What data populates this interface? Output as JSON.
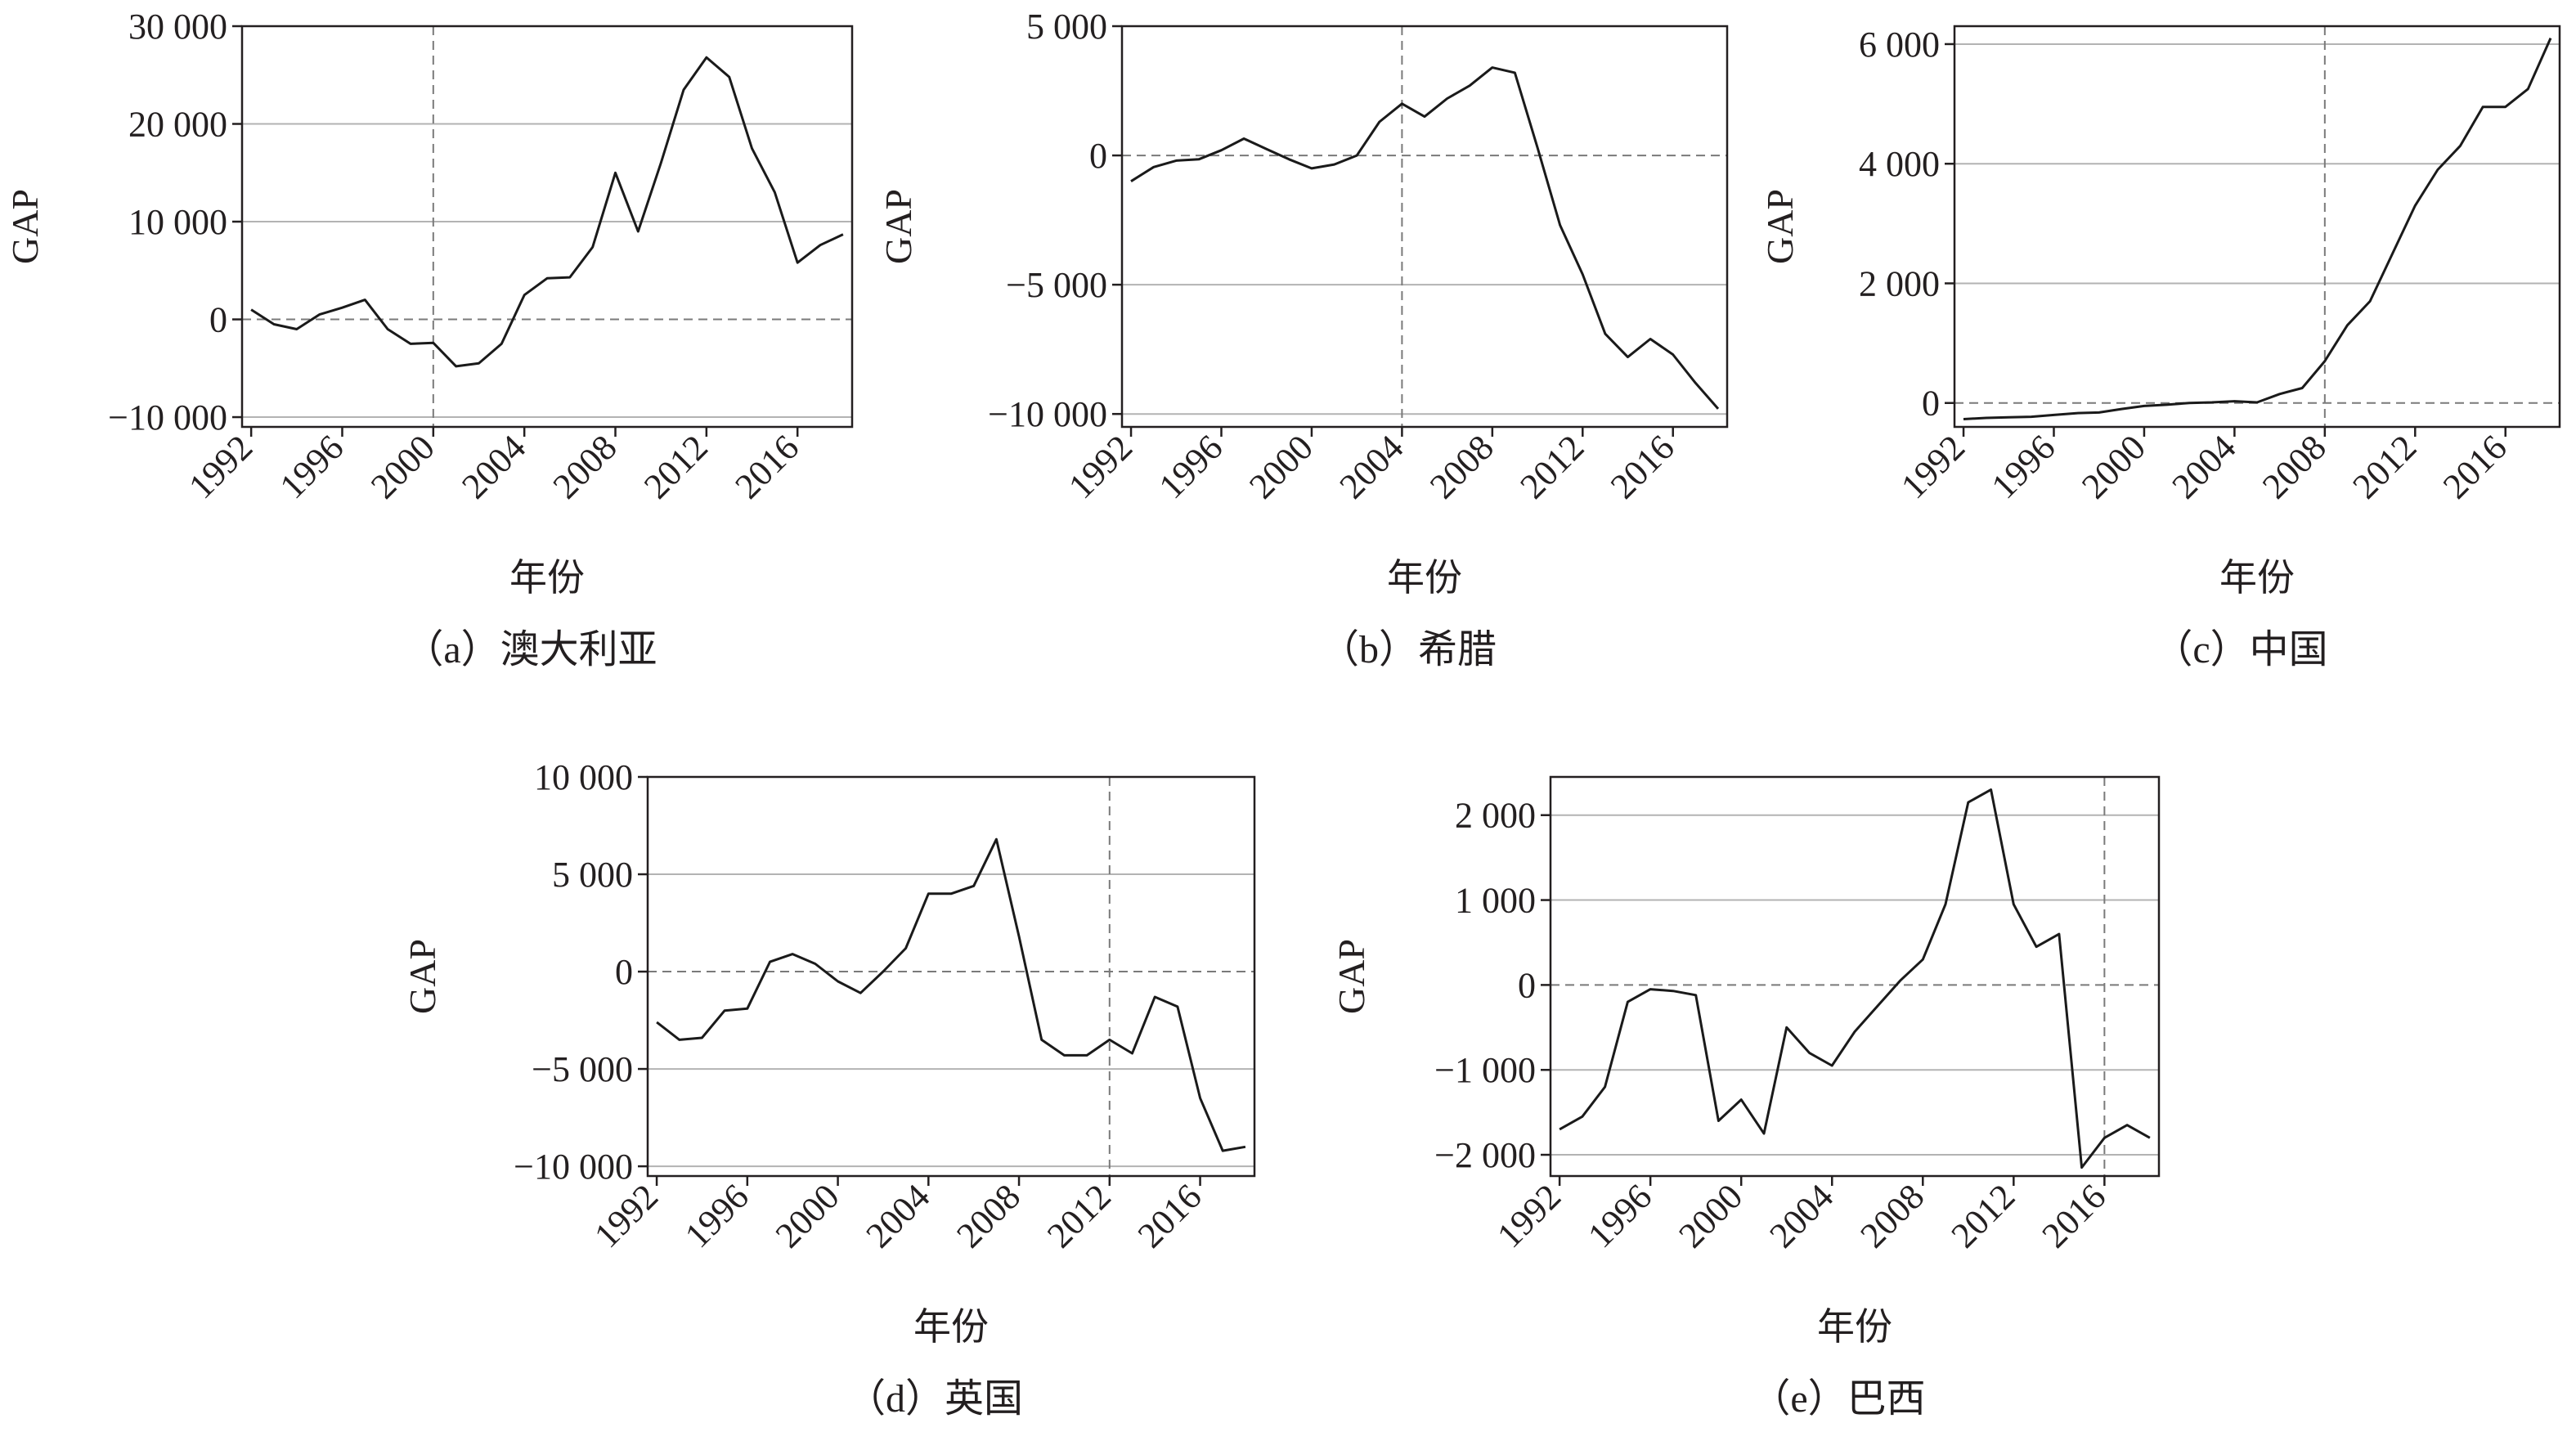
{
  "chart_data": [
    {
      "type": "line",
      "panel": "a",
      "caption": "（a）澳大利亚",
      "xlabel": "年份",
      "ylabel": "GAP",
      "xlim": [
        1991.6,
        2018.4
      ],
      "ylim": [
        -11000,
        30000
      ],
      "x_ticks": [
        1992,
        1996,
        2000,
        2004,
        2008,
        2012,
        2016
      ],
      "y_ticks": [
        -10000,
        0,
        10000,
        20000,
        30000
      ],
      "y_tick_labels": [
        "−10 000",
        "0",
        "10 000",
        "20 000",
        "30 000"
      ],
      "grid": "horizontal",
      "zero_line": "dashed",
      "treatment_year": 2000,
      "series": [
        {
          "x": [
            1992,
            1993,
            1994,
            1995,
            1996,
            1997,
            1998,
            1999,
            2000,
            2001,
            2002,
            2003,
            2004,
            2005,
            2006,
            2007,
            2008,
            2009,
            2010,
            2011,
            2012,
            2013,
            2014,
            2015,
            2016,
            2017,
            2018
          ],
          "values": [
            1000,
            -500,
            -1000,
            500,
            1200,
            2000,
            -1000,
            -2500,
            -2400,
            -4800,
            -4500,
            -2500,
            2500,
            4200,
            4300,
            7400,
            15000,
            9000,
            16000,
            23500,
            26800,
            24800,
            17500,
            13000,
            5800,
            7600,
            8700
          ]
        }
      ]
    },
    {
      "type": "line",
      "panel": "b",
      "caption": "（b）希腊",
      "xlabel": "年份",
      "ylabel": "GAP",
      "xlim": [
        1991.6,
        2018.4
      ],
      "ylim": [
        -10500,
        5000
      ],
      "x_ticks": [
        1992,
        1996,
        2000,
        2004,
        2008,
        2012,
        2016
      ],
      "y_ticks": [
        -10000,
        -5000,
        0,
        5000
      ],
      "y_tick_labels": [
        "−10 000",
        "−5 000",
        "0",
        "5 000"
      ],
      "grid": "horizontal",
      "zero_line": "dashed",
      "treatment_year": 2004,
      "series": [
        {
          "x": [
            1992,
            1993,
            1994,
            1995,
            1996,
            1997,
            1998,
            1999,
            2000,
            2001,
            2002,
            2003,
            2004,
            2005,
            2006,
            2007,
            2008,
            2009,
            2010,
            2011,
            2012,
            2013,
            2014,
            2015,
            2016,
            2017,
            2018
          ],
          "values": [
            -1000,
            -450,
            -200,
            -150,
            200,
            650,
            250,
            -150,
            -500,
            -350,
            0,
            1300,
            2000,
            1500,
            2200,
            2700,
            3400,
            3200,
            300,
            -2700,
            -4600,
            -6900,
            -7800,
            -7100,
            -7700,
            -8800,
            -9800
          ]
        }
      ]
    },
    {
      "type": "line",
      "panel": "c",
      "caption": "（c）中国",
      "xlabel": "年份",
      "ylabel": "GAP",
      "xlim": [
        1991.6,
        2018.4
      ],
      "ylim": [
        -400,
        6300
      ],
      "x_ticks": [
        1992,
        1996,
        2000,
        2004,
        2008,
        2012,
        2016
      ],
      "y_ticks": [
        0,
        2000,
        4000,
        6000
      ],
      "y_tick_labels": [
        "0",
        "2 000",
        "4 000",
        "6 000"
      ],
      "grid": "horizontal",
      "zero_line": "dashed",
      "treatment_year": 2008,
      "series": [
        {
          "x": [
            1992,
            1993,
            1994,
            1995,
            1996,
            1997,
            1998,
            1999,
            2000,
            2001,
            2002,
            2003,
            2004,
            2005,
            2006,
            2007,
            2008,
            2009,
            2010,
            2011,
            2012,
            2013,
            2014,
            2015,
            2016,
            2017,
            2018
          ],
          "values": [
            -270,
            -250,
            -240,
            -230,
            -200,
            -170,
            -160,
            -100,
            -50,
            -30,
            0,
            10,
            30,
            10,
            150,
            250,
            700,
            1300,
            1700,
            2500,
            3300,
            3900,
            4300,
            4950,
            4950,
            5250,
            6100
          ]
        }
      ]
    },
    {
      "type": "line",
      "panel": "d",
      "caption": "（d）英国",
      "xlabel": "年份",
      "ylabel": "GAP",
      "xlim": [
        1991.6,
        2018.4
      ],
      "ylim": [
        -10500,
        10000
      ],
      "x_ticks": [
        1992,
        1996,
        2000,
        2004,
        2008,
        2012,
        2016
      ],
      "y_ticks": [
        -10000,
        -5000,
        0,
        5000,
        10000
      ],
      "y_tick_labels": [
        "−10 000",
        "−5 000",
        "0",
        "5 000",
        "10 000"
      ],
      "grid": "horizontal",
      "zero_line": "dashed",
      "treatment_year": 2012,
      "series": [
        {
          "x": [
            1992,
            1993,
            1994,
            1995,
            1996,
            1997,
            1998,
            1999,
            2000,
            2001,
            2002,
            2003,
            2004,
            2005,
            2006,
            2007,
            2008,
            2009,
            2010,
            2011,
            2012,
            2013,
            2014,
            2015,
            2016,
            2017,
            2018
          ],
          "values": [
            -2600,
            -3500,
            -3400,
            -2000,
            -1900,
            500,
            900,
            400,
            -500,
            -1100,
            0,
            1200,
            4000,
            4000,
            4400,
            6800,
            1800,
            -3500,
            -4300,
            -4300,
            -3500,
            -4200,
            -1300,
            -1800,
            -6500,
            -9200,
            -9000
          ]
        }
      ]
    },
    {
      "type": "line",
      "panel": "e",
      "caption": "（e）巴西",
      "xlabel": "年份",
      "ylabel": "GAP",
      "xlim": [
        1991.6,
        2018.4
      ],
      "ylim": [
        -2250,
        2450
      ],
      "x_ticks": [
        1992,
        1996,
        2000,
        2004,
        2008,
        2012,
        2016
      ],
      "y_ticks": [
        -2000,
        -1000,
        0,
        1000,
        2000
      ],
      "y_tick_labels": [
        "−2 000",
        "−1 000",
        "0",
        "1 000",
        "2 000"
      ],
      "grid": "horizontal",
      "zero_line": "dashed",
      "treatment_year": 2016,
      "series": [
        {
          "x": [
            1992,
            1993,
            1994,
            1995,
            1996,
            1997,
            1998,
            1999,
            2000,
            2001,
            2002,
            2003,
            2004,
            2005,
            2006,
            2007,
            2008,
            2009,
            2010,
            2011,
            2012,
            2013,
            2014,
            2015,
            2016,
            2017,
            2018
          ],
          "values": [
            -1700,
            -1550,
            -1200,
            -200,
            -50,
            -70,
            -120,
            -1600,
            -1350,
            -1750,
            -500,
            -800,
            -950,
            -550,
            -250,
            50,
            300,
            950,
            2150,
            2300,
            950,
            450,
            600,
            -2150,
            -1800,
            -1650,
            -1800
          ]
        }
      ]
    }
  ]
}
